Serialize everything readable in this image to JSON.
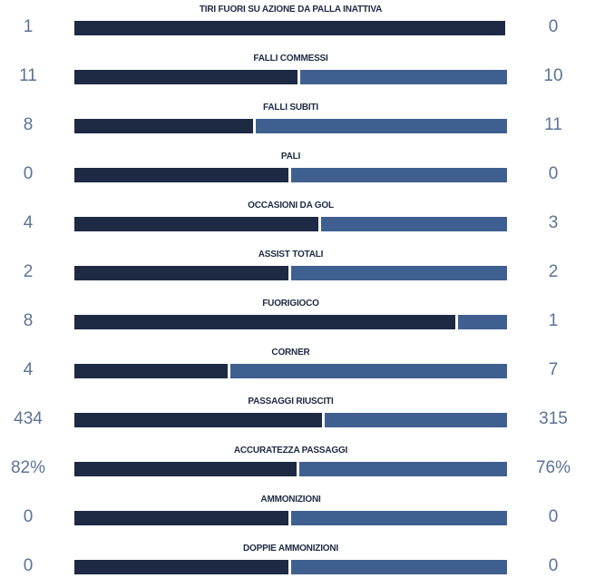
{
  "colors": {
    "home": "#1e2a44",
    "away": "#3f5f90",
    "label": "#1e2a44",
    "value": "#5b7396"
  },
  "stats": [
    {
      "label": "TIRI FUORI SU AZIONE DA PALLA INATTIVA",
      "home": "1",
      "away": "0",
      "home_share": 0.995
    },
    {
      "label": "FALLI COMMESSI",
      "home": "11",
      "away": "10",
      "home_share": 0.516
    },
    {
      "label": "FALLI SUBITI",
      "home": "8",
      "away": "11",
      "home_share": 0.412
    },
    {
      "label": "PALI",
      "home": "0",
      "away": "0",
      "home_share": 0.495
    },
    {
      "label": "OCCASIONI DA GOL",
      "home": "4",
      "away": "3",
      "home_share": 0.563
    },
    {
      "label": "ASSIST TOTALI",
      "home": "2",
      "away": "2",
      "home_share": 0.495
    },
    {
      "label": "FUORIGIOCO",
      "home": "8",
      "away": "1",
      "home_share": 0.88
    },
    {
      "label": "CORNER",
      "home": "4",
      "away": "7",
      "home_share": 0.354
    },
    {
      "label": "PASSAGGI RIUSCITI",
      "home": "434",
      "away": "315",
      "home_share": 0.572
    },
    {
      "label": "ACCURATEZZA PASSAGGI",
      "home": "82%",
      "away": "76%",
      "home_share": 0.514
    },
    {
      "label": "AMMONIZIONI",
      "home": "0",
      "away": "0",
      "home_share": 0.495
    },
    {
      "label": "DOPPIE AMMONIZIONI",
      "home": "0",
      "away": "0",
      "home_share": 0.495
    }
  ]
}
